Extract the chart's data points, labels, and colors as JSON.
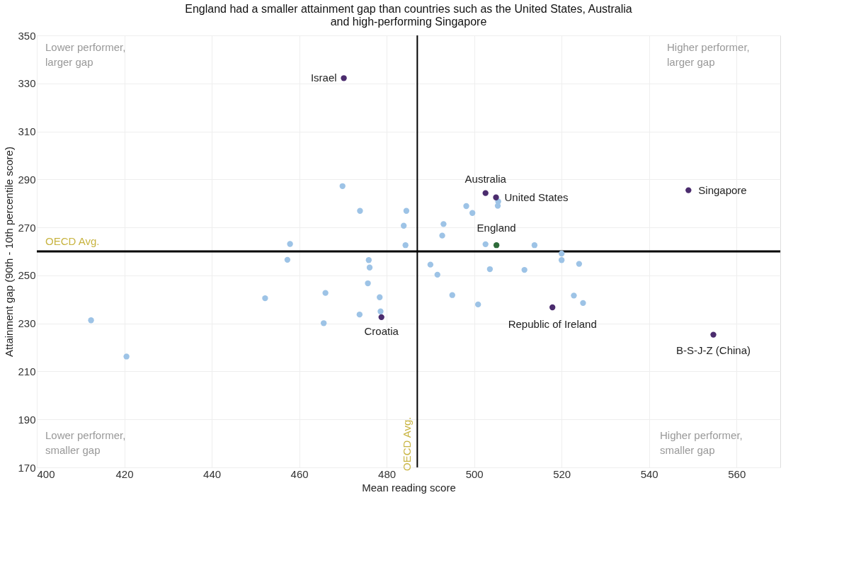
{
  "chart_data": {
    "type": "scatter",
    "title": "England had a smaller attainment gap than countries such as the United States, Australia\nand high-performing Singapore",
    "xlabel": "Mean reading score",
    "ylabel": "Attainment gap (90th - 10th percentile score)",
    "xlim": [
      400,
      570
    ],
    "xticks": [
      400,
      420,
      440,
      460,
      480,
      500,
      520,
      540,
      560
    ],
    "ylim": [
      170,
      350
    ],
    "yticks": [
      170,
      190,
      210,
      230,
      250,
      270,
      290,
      310,
      330,
      350
    ],
    "grid": true,
    "marker": "circle",
    "series": [
      {
        "color": "#9dc3e6",
        "x": [
          412.4,
          420.5,
          452.2,
          457.3,
          457.9,
          469.9,
          473.9,
          484.5,
          483.9,
          484.3,
          475.9,
          476.1,
          475.7,
          466.0,
          478.4,
          478.6,
          473.8,
          465.6,
          490.0,
          491.6,
          495.0,
          500.9,
          503.6,
          511.5,
          493.0,
          492.7,
          498.2,
          499.6,
          505.5,
          505.4,
          502.6,
          513.8,
          520.0,
          520.0,
          524.0,
          522.8,
          524.9
        ],
        "values": [
          231.3,
          216.2,
          240.5,
          256.5,
          263.1,
          287.2,
          276.9,
          276.9,
          270.7,
          262.6,
          256.4,
          253.3,
          246.7,
          242.7,
          240.9,
          235.0,
          233.7,
          230.1,
          254.5,
          250.3,
          241.8,
          237.9,
          252.6,
          252.3,
          271.4,
          266.6,
          278.9,
          276.0,
          280.8,
          279.0,
          263.0,
          262.6,
          259.1,
          256.4,
          254.8,
          241.6,
          238.5
        ]
      },
      {
        "color": "#4b2c6e",
        "x": [
          470.2,
          502.6,
          505.0,
          549.0,
          517.9,
          478.8,
          554.7
        ],
        "values": [
          332.2,
          284.3,
          282.5,
          285.5,
          236.7,
          232.6,
          225.3
        ]
      },
      {
        "color": "#2e6b3a",
        "x": [
          505.1
        ],
        "values": [
          262.6
        ]
      }
    ],
    "ref_lines": [
      {
        "axis": "x",
        "value": 487,
        "label": "OECD Avg.",
        "color": "#000000"
      },
      {
        "axis": "y",
        "value": 260,
        "label": "OECD Avg.",
        "color": "#000000"
      }
    ],
    "annotations": [
      {
        "text": "Israel",
        "x": 470.2,
        "y": 332.2
      },
      {
        "text": "Australia",
        "x": 502.6,
        "y": 284.3
      },
      {
        "text": "United States",
        "x": 505.0,
        "y": 282.5
      },
      {
        "text": "Singapore",
        "x": 549.0,
        "y": 285.5
      },
      {
        "text": "England",
        "x": 505.1,
        "y": 262.6
      },
      {
        "text": "Republic of Ireland",
        "x": 517.9,
        "y": 236.7
      },
      {
        "text": "Croatia",
        "x": 478.8,
        "y": 232.6
      },
      {
        "text": "B-S-J-Z (China)",
        "x": 554.7,
        "y": 225.3
      },
      "Lower performer,\nlarger gap",
      "Higher performer,\nlarger gap",
      "Lower performer,\nsmaller gap",
      "Higher performer,\nsmaller gap"
    ]
  }
}
